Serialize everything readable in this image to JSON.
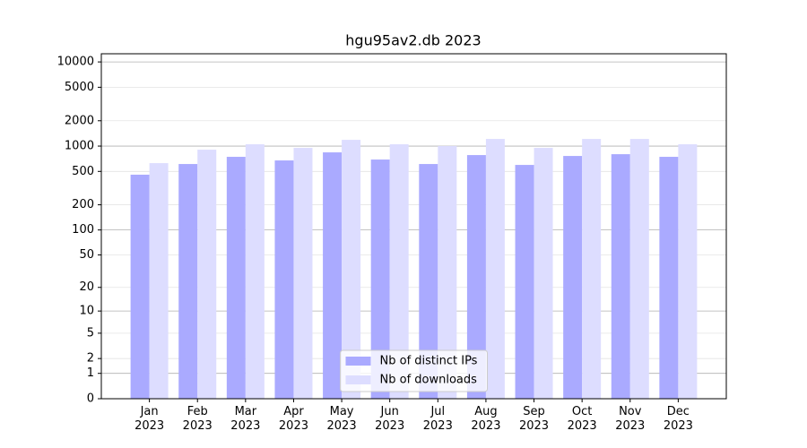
{
  "chart_data": {
    "type": "bar",
    "title": "hgu95av2.db 2023",
    "categories": [
      "Jan\n2023",
      "Feb\n2023",
      "Mar\n2023",
      "Apr\n2023",
      "May\n2023",
      "Jun\n2023",
      "Jul\n2023",
      "Aug\n2023",
      "Sep\n2023",
      "Oct\n2023",
      "Nov\n2023",
      "Dec\n2023"
    ],
    "series": [
      {
        "name": "Nb of distinct IPs",
        "color": "#aaaaff",
        "values": [
          457,
          612,
          745,
          675,
          842,
          692,
          612,
          782,
          597,
          763,
          801,
          745
        ]
      },
      {
        "name": "Nb of downloads",
        "color": "#ddddff",
        "values": [
          627,
          906,
          1050,
          952,
          1186,
          1050,
          1000,
          1216,
          952,
          1216,
          1216,
          1050
        ]
      }
    ],
    "y_scale": "log1p",
    "ylim": [
      0,
      12500
    ],
    "yticks": [
      0,
      1,
      2,
      5,
      10,
      20,
      50,
      100,
      200,
      500,
      1000,
      2000,
      5000,
      10000
    ],
    "grid": true,
    "legend": "lower center"
  }
}
